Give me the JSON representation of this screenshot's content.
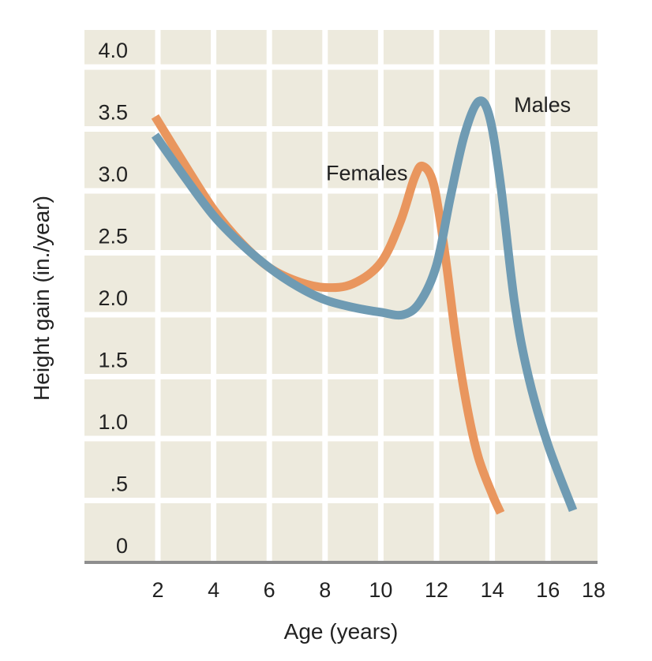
{
  "chart_data": {
    "type": "line",
    "title": "",
    "xlabel": "Age (years)",
    "ylabel": "Height gain (in./year)",
    "xlim": [
      2,
      18
    ],
    "ylim": [
      0,
      4.0
    ],
    "x_ticks": [
      2,
      4,
      6,
      8,
      10,
      12,
      14,
      16,
      18
    ],
    "x_tick_labels": [
      "2",
      "4",
      "6",
      "8",
      "10",
      "12",
      "14",
      "16",
      "18"
    ],
    "y_ticks": [
      0,
      0.5,
      1.0,
      1.5,
      2.0,
      2.5,
      3.0,
      3.5,
      4.0
    ],
    "y_tick_labels": [
      "0",
      ".5",
      "1.0",
      "1.5",
      "2.0",
      "2.5",
      "3.0",
      "3.5",
      "4.0"
    ],
    "grid": true,
    "legend": "none (direct labels)",
    "colors": {
      "background": "#EDEADD",
      "grid": "#FFFFFF",
      "axis": "#8E8E8E",
      "females": "#E9965E",
      "males": "#6F9BB3"
    },
    "series": [
      {
        "name": "Females",
        "color": "#E9965E",
        "x": [
          1.9,
          3,
          4,
          5,
          6,
          7,
          8,
          9,
          10,
          10.7,
          11.2,
          11.5,
          11.9,
          12.3,
          12.7,
          13.1,
          13.5,
          14.0,
          14.3
        ],
        "y": [
          3.6,
          3.2,
          2.85,
          2.58,
          2.38,
          2.27,
          2.22,
          2.25,
          2.42,
          2.75,
          3.1,
          3.2,
          3.05,
          2.5,
          1.8,
          1.25,
          0.85,
          0.55,
          0.4
        ]
      },
      {
        "name": "Males",
        "color": "#6F9BB3",
        "x": [
          1.9,
          3,
          4,
          5,
          6,
          7,
          8,
          9,
          10,
          10.8,
          11.4,
          12,
          12.5,
          13,
          13.5,
          13.9,
          14.3,
          14.8,
          15.3,
          16,
          16.9
        ],
        "y": [
          3.45,
          3.1,
          2.8,
          2.57,
          2.38,
          2.23,
          2.12,
          2.06,
          2.02,
          2.0,
          2.1,
          2.4,
          2.95,
          3.45,
          3.72,
          3.6,
          3.05,
          2.1,
          1.5,
          0.95,
          0.42
        ]
      }
    ],
    "annotations": [
      {
        "text": "Females",
        "x": 9.5,
        "y": 3.15
      },
      {
        "text": "Males",
        "x": 15.8,
        "y": 3.7
      }
    ]
  }
}
